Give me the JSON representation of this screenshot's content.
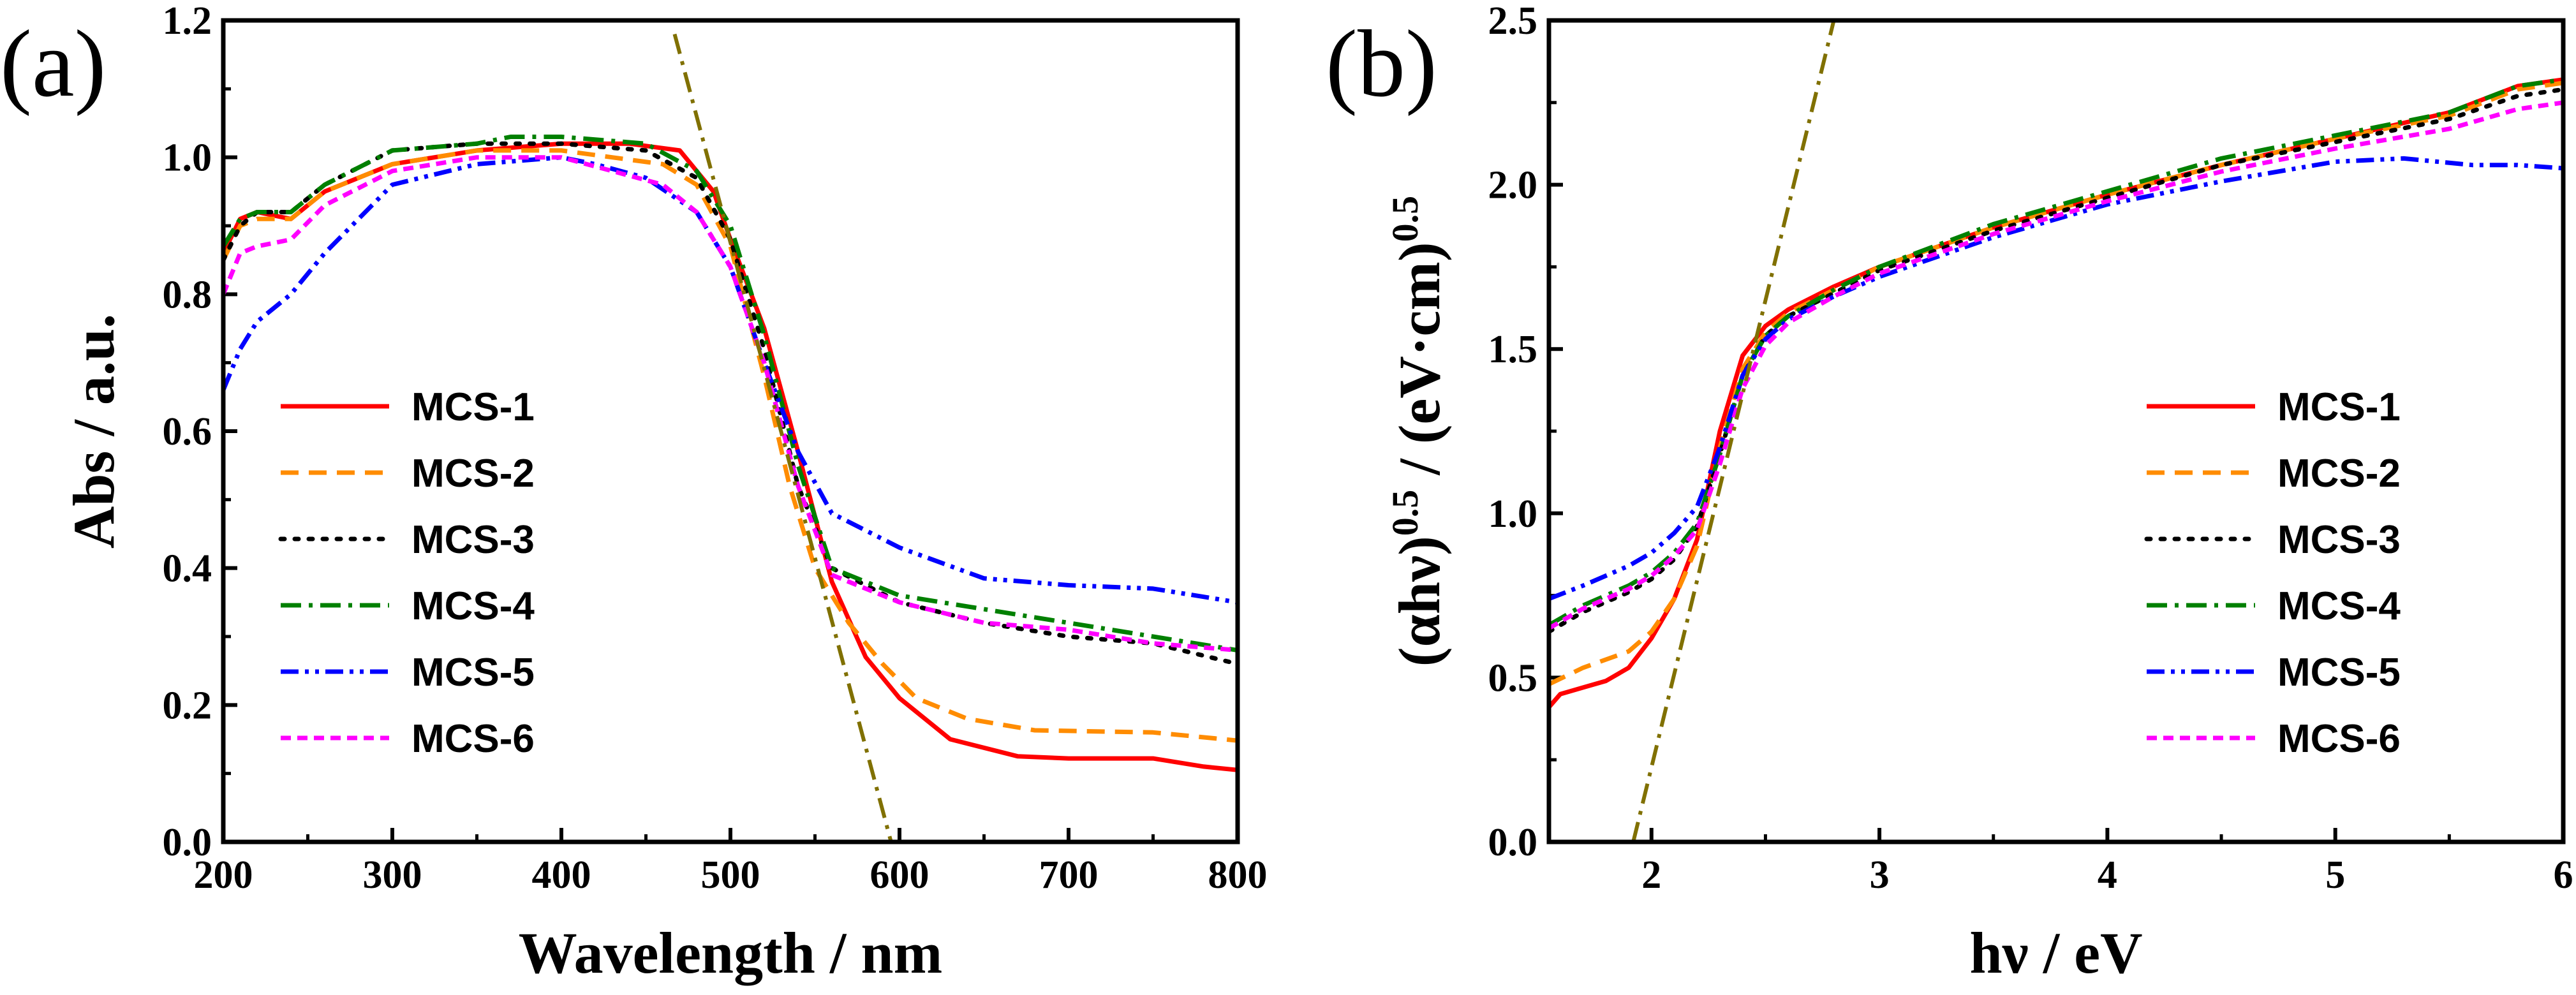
{
  "chart_data": [
    {
      "panel": "(a)",
      "type": "line",
      "xlabel": "Wavelength / nm",
      "ylabel": "Abs / a.u.",
      "xlim": [
        200,
        800
      ],
      "ylim": [
        0,
        1.2
      ],
      "xticks": [
        200,
        300,
        400,
        500,
        600,
        700,
        800
      ],
      "yticks": [
        0.0,
        0.2,
        0.4,
        0.6,
        0.8,
        1.0,
        1.2
      ],
      "xtick_labels": [
        "200",
        "300",
        "400",
        "500",
        "600",
        "700",
        "800"
      ],
      "ytick_labels": [
        "0.0",
        "0.2",
        "0.4",
        "0.6",
        "0.8",
        "1.0",
        "1.2"
      ],
      "legend_position": "left-center",
      "series": [
        {
          "name": "MCS-1",
          "color": "#ff0000",
          "style": "solid",
          "points": [
            [
              200,
              0.86
            ],
            [
              210,
              0.91
            ],
            [
              220,
              0.92
            ],
            [
              240,
              0.91
            ],
            [
              260,
              0.95
            ],
            [
              300,
              0.99
            ],
            [
              350,
              1.01
            ],
            [
              400,
              1.02
            ],
            [
              440,
              1.02
            ],
            [
              470,
              1.01
            ],
            [
              490,
              0.95
            ],
            [
              500,
              0.88
            ],
            [
              520,
              0.75
            ],
            [
              540,
              0.57
            ],
            [
              560,
              0.38
            ],
            [
              580,
              0.27
            ],
            [
              600,
              0.21
            ],
            [
              630,
              0.15
            ],
            [
              670,
              0.125
            ],
            [
              700,
              0.122
            ],
            [
              750,
              0.122
            ],
            [
              780,
              0.11
            ],
            [
              800,
              0.105
            ]
          ]
        },
        {
          "name": "MCS-2",
          "color": "#ff8c00",
          "style": "dash",
          "points": [
            [
              200,
              0.85
            ],
            [
              210,
              0.9
            ],
            [
              220,
              0.91
            ],
            [
              240,
              0.91
            ],
            [
              260,
              0.95
            ],
            [
              300,
              0.99
            ],
            [
              350,
              1.01
            ],
            [
              400,
              1.01
            ],
            [
              430,
              1.0
            ],
            [
              460,
              0.99
            ],
            [
              480,
              0.96
            ],
            [
              500,
              0.87
            ],
            [
              520,
              0.68
            ],
            [
              535,
              0.52
            ],
            [
              550,
              0.4
            ],
            [
              570,
              0.32
            ],
            [
              590,
              0.26
            ],
            [
              610,
              0.21
            ],
            [
              640,
              0.18
            ],
            [
              680,
              0.163
            ],
            [
              750,
              0.16
            ],
            [
              800,
              0.148
            ]
          ]
        },
        {
          "name": "MCS-3",
          "color": "#000000",
          "style": "dot",
          "points": [
            [
              200,
              0.85
            ],
            [
              210,
              0.9
            ],
            [
              220,
              0.92
            ],
            [
              240,
              0.92
            ],
            [
              260,
              0.96
            ],
            [
              300,
              1.01
            ],
            [
              350,
              1.02
            ],
            [
              400,
              1.02
            ],
            [
              450,
              1.01
            ],
            [
              480,
              0.97
            ],
            [
              500,
              0.88
            ],
            [
              520,
              0.72
            ],
            [
              540,
              0.52
            ],
            [
              560,
              0.4
            ],
            [
              600,
              0.35
            ],
            [
              650,
              0.32
            ],
            [
              700,
              0.3
            ],
            [
              750,
              0.29
            ],
            [
              800,
              0.26
            ]
          ]
        },
        {
          "name": "MCS-4",
          "color": "#008000",
          "style": "dashdot",
          "points": [
            [
              200,
              0.87
            ],
            [
              210,
              0.91
            ],
            [
              220,
              0.92
            ],
            [
              240,
              0.92
            ],
            [
              260,
              0.96
            ],
            [
              300,
              1.01
            ],
            [
              350,
              1.02
            ],
            [
              370,
              1.03
            ],
            [
              400,
              1.03
            ],
            [
              450,
              1.02
            ],
            [
              480,
              0.98
            ],
            [
              500,
              0.9
            ],
            [
              520,
              0.74
            ],
            [
              540,
              0.55
            ],
            [
              560,
              0.4
            ],
            [
              600,
              0.36
            ],
            [
              650,
              0.34
            ],
            [
              700,
              0.32
            ],
            [
              750,
              0.3
            ],
            [
              800,
              0.28
            ]
          ]
        },
        {
          "name": "MCS-5",
          "color": "#0000ff",
          "style": "dashdotdot",
          "points": [
            [
              200,
              0.66
            ],
            [
              210,
              0.72
            ],
            [
              220,
              0.76
            ],
            [
              240,
              0.8
            ],
            [
              260,
              0.86
            ],
            [
              300,
              0.96
            ],
            [
              350,
              0.99
            ],
            [
              400,
              1.0
            ],
            [
              420,
              0.99
            ],
            [
              450,
              0.97
            ],
            [
              480,
              0.92
            ],
            [
              500,
              0.84
            ],
            [
              520,
              0.7
            ],
            [
              540,
              0.57
            ],
            [
              560,
              0.48
            ],
            [
              600,
              0.43
            ],
            [
              650,
              0.385
            ],
            [
              700,
              0.375
            ],
            [
              750,
              0.37
            ],
            [
              800,
              0.35
            ]
          ]
        },
        {
          "name": "MCS-6",
          "color": "#ff00ff",
          "style": "shortdash",
          "points": [
            [
              200,
              0.8
            ],
            [
              210,
              0.86
            ],
            [
              220,
              0.87
            ],
            [
              240,
              0.88
            ],
            [
              260,
              0.93
            ],
            [
              300,
              0.98
            ],
            [
              350,
              1.0
            ],
            [
              400,
              1.0
            ],
            [
              430,
              0.98
            ],
            [
              460,
              0.96
            ],
            [
              480,
              0.92
            ],
            [
              500,
              0.84
            ],
            [
              520,
              0.7
            ],
            [
              540,
              0.52
            ],
            [
              560,
              0.39
            ],
            [
              600,
              0.35
            ],
            [
              650,
              0.32
            ],
            [
              700,
              0.31
            ],
            [
              750,
              0.29
            ],
            [
              800,
              0.28
            ]
          ]
        },
        {
          "name": "",
          "color": "#807000",
          "style": "dashdot",
          "legend": false,
          "points": [
            [
              467,
              1.18
            ],
            [
              595,
              0.0
            ]
          ]
        }
      ]
    },
    {
      "panel": "(b)",
      "type": "line",
      "xlabel": "hν / eV",
      "ylabel_main": "(αhν)",
      "ylabel_sup1": "0.5",
      "ylabel_mid": " / (eV·cm)",
      "ylabel_sup2": "0.5",
      "xlim": [
        1.55,
        6
      ],
      "ylim": [
        0,
        2.5
      ],
      "xticks": [
        2,
        3,
        4,
        5,
        6
      ],
      "yticks": [
        0.0,
        0.5,
        1.0,
        1.5,
        2.0,
        2.5
      ],
      "xtick_labels": [
        "2",
        "3",
        "4",
        "5",
        "6"
      ],
      "ytick_labels": [
        "0.0",
        "0.5",
        "1.0",
        "1.5",
        "2.0",
        "2.5"
      ],
      "legend_position": "right-center",
      "series": [
        {
          "name": "MCS-1",
          "color": "#ff0000",
          "style": "solid",
          "points": [
            [
              1.55,
              0.41
            ],
            [
              1.6,
              0.45
            ],
            [
              1.7,
              0.47
            ],
            [
              1.8,
              0.49
            ],
            [
              1.9,
              0.53
            ],
            [
              2.0,
              0.62
            ],
            [
              2.1,
              0.74
            ],
            [
              2.2,
              0.92
            ],
            [
              2.3,
              1.25
            ],
            [
              2.4,
              1.48
            ],
            [
              2.5,
              1.57
            ],
            [
              2.6,
              1.62
            ],
            [
              2.8,
              1.69
            ],
            [
              3.0,
              1.75
            ],
            [
              3.5,
              1.87
            ],
            [
              4.0,
              1.97
            ],
            [
              4.5,
              2.06
            ],
            [
              5.0,
              2.14
            ],
            [
              5.5,
              2.22
            ],
            [
              5.8,
              2.3
            ],
            [
              6.0,
              2.32
            ]
          ]
        },
        {
          "name": "MCS-2",
          "color": "#ff8c00",
          "style": "dash",
          "points": [
            [
              1.55,
              0.48
            ],
            [
              1.7,
              0.53
            ],
            [
              1.9,
              0.58
            ],
            [
              2.0,
              0.64
            ],
            [
              2.1,
              0.74
            ],
            [
              2.2,
              0.9
            ],
            [
              2.3,
              1.2
            ],
            [
              2.4,
              1.44
            ],
            [
              2.5,
              1.55
            ],
            [
              2.6,
              1.61
            ],
            [
              2.8,
              1.68
            ],
            [
              3.0,
              1.75
            ],
            [
              3.5,
              1.87
            ],
            [
              4.0,
              1.97
            ],
            [
              4.5,
              2.06
            ],
            [
              5.0,
              2.14
            ],
            [
              5.5,
              2.21
            ],
            [
              5.8,
              2.29
            ],
            [
              6.0,
              2.31
            ]
          ]
        },
        {
          "name": "MCS-3",
          "color": "#000000",
          "style": "dot",
          "points": [
            [
              1.55,
              0.64
            ],
            [
              1.7,
              0.7
            ],
            [
              1.9,
              0.76
            ],
            [
              2.0,
              0.8
            ],
            [
              2.1,
              0.86
            ],
            [
              2.2,
              0.96
            ],
            [
              2.3,
              1.18
            ],
            [
              2.4,
              1.42
            ],
            [
              2.5,
              1.54
            ],
            [
              2.6,
              1.6
            ],
            [
              2.8,
              1.67
            ],
            [
              3.0,
              1.74
            ],
            [
              3.5,
              1.86
            ],
            [
              4.0,
              1.96
            ],
            [
              4.5,
              2.06
            ],
            [
              5.0,
              2.13
            ],
            [
              5.5,
              2.2
            ],
            [
              5.8,
              2.27
            ],
            [
              6.0,
              2.29
            ]
          ]
        },
        {
          "name": "MCS-4",
          "color": "#008000",
          "style": "dashdot",
          "points": [
            [
              1.55,
              0.66
            ],
            [
              1.7,
              0.72
            ],
            [
              1.9,
              0.78
            ],
            [
              2.0,
              0.82
            ],
            [
              2.1,
              0.88
            ],
            [
              2.2,
              0.97
            ],
            [
              2.3,
              1.18
            ],
            [
              2.4,
              1.42
            ],
            [
              2.5,
              1.54
            ],
            [
              2.6,
              1.6
            ],
            [
              2.8,
              1.68
            ],
            [
              3.0,
              1.75
            ],
            [
              3.5,
              1.88
            ],
            [
              4.0,
              1.98
            ],
            [
              4.5,
              2.08
            ],
            [
              5.0,
              2.15
            ],
            [
              5.5,
              2.22
            ],
            [
              5.8,
              2.3
            ],
            [
              6.0,
              2.32
            ]
          ]
        },
        {
          "name": "MCS-5",
          "color": "#0000ff",
          "style": "dashdotdot",
          "points": [
            [
              1.55,
              0.74
            ],
            [
              1.7,
              0.78
            ],
            [
              1.9,
              0.84
            ],
            [
              2.0,
              0.88
            ],
            [
              2.1,
              0.94
            ],
            [
              2.2,
              1.02
            ],
            [
              2.3,
              1.2
            ],
            [
              2.4,
              1.42
            ],
            [
              2.5,
              1.53
            ],
            [
              2.6,
              1.59
            ],
            [
              2.8,
              1.66
            ],
            [
              3.0,
              1.72
            ],
            [
              3.5,
              1.84
            ],
            [
              4.0,
              1.94
            ],
            [
              4.5,
              2.01
            ],
            [
              5.0,
              2.07
            ],
            [
              5.3,
              2.08
            ],
            [
              5.6,
              2.06
            ],
            [
              5.8,
              2.06
            ],
            [
              6.0,
              2.05
            ]
          ]
        },
        {
          "name": "MCS-6",
          "color": "#ff00ff",
          "style": "shortdash",
          "points": [
            [
              1.55,
              0.65
            ],
            [
              1.7,
              0.71
            ],
            [
              1.9,
              0.77
            ],
            [
              2.0,
              0.81
            ],
            [
              2.1,
              0.87
            ],
            [
              2.2,
              0.95
            ],
            [
              2.3,
              1.15
            ],
            [
              2.4,
              1.38
            ],
            [
              2.5,
              1.51
            ],
            [
              2.6,
              1.58
            ],
            [
              2.8,
              1.66
            ],
            [
              3.0,
              1.73
            ],
            [
              3.5,
              1.85
            ],
            [
              4.0,
              1.95
            ],
            [
              4.5,
              2.04
            ],
            [
              5.0,
              2.11
            ],
            [
              5.5,
              2.17
            ],
            [
              5.8,
              2.23
            ],
            [
              6.0,
              2.25
            ]
          ]
        },
        {
          "name": "",
          "color": "#807000",
          "style": "dashdot",
          "legend": false,
          "points": [
            [
              1.92,
              0.0
            ],
            [
              2.8,
              2.5
            ]
          ]
        }
      ]
    }
  ]
}
